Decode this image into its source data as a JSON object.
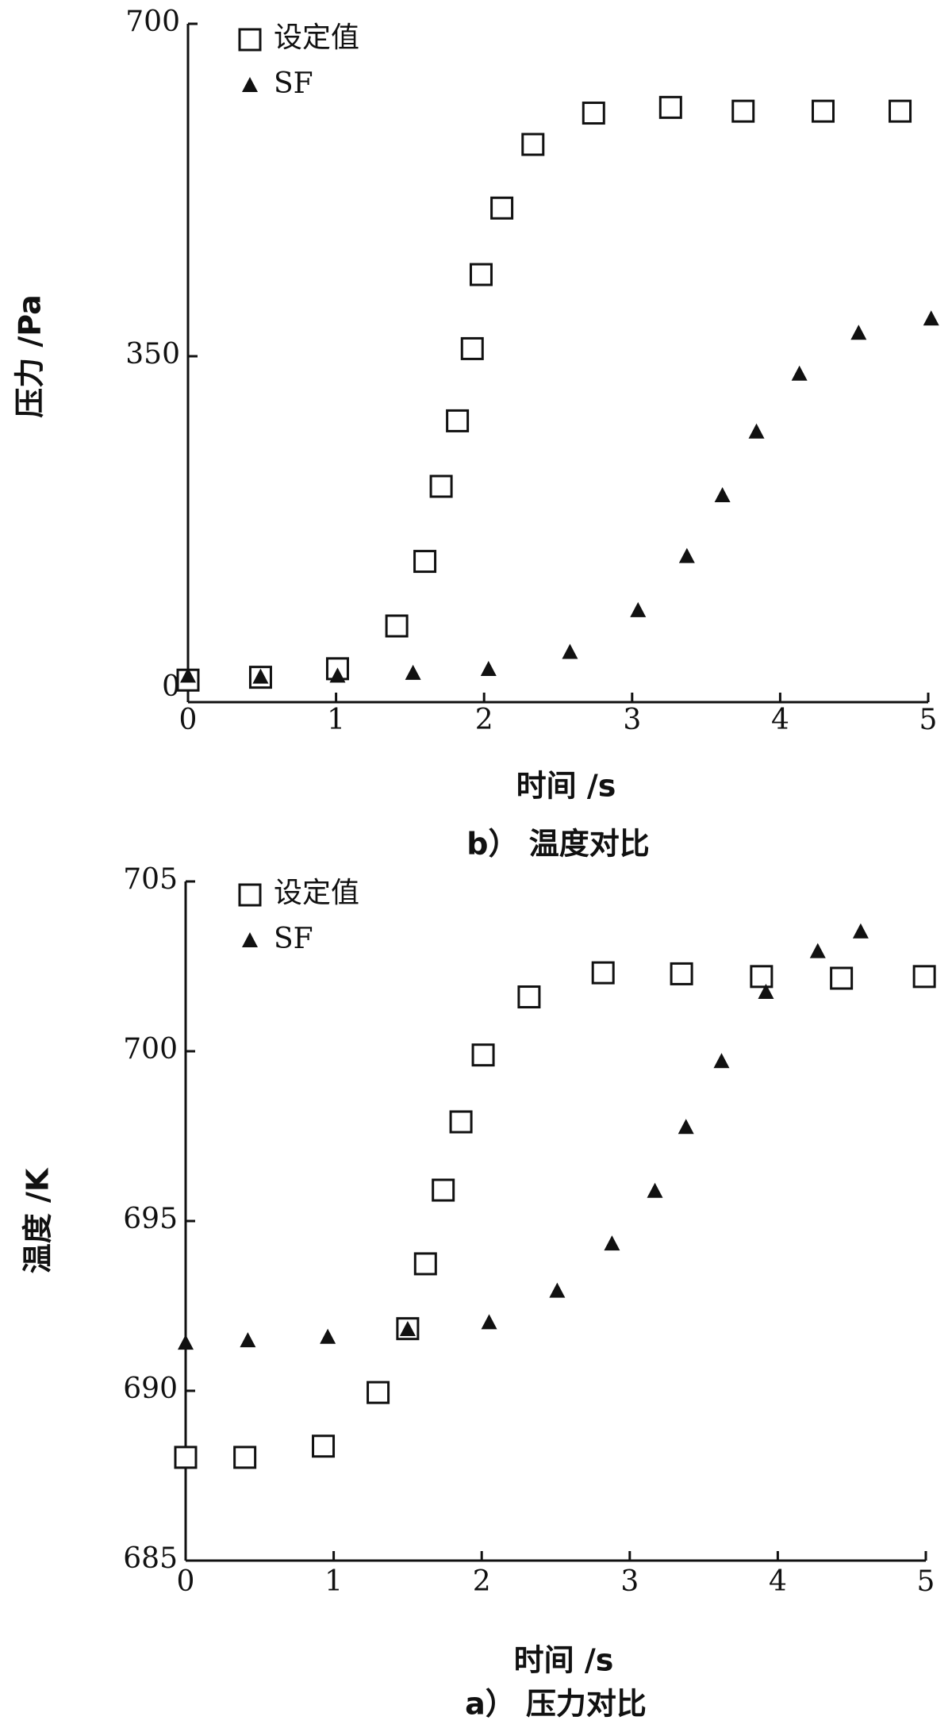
{
  "chart_data": [
    {
      "type": "scatter",
      "caption": "b） 温度对比",
      "xlabel": "时间 /s",
      "ylabel": "压力 /Pa",
      "xlim": [
        0,
        5
      ],
      "xticks": [
        0,
        1,
        2,
        3,
        4,
        5
      ],
      "ylim": [
        0,
        700
      ],
      "yticks": [
        0,
        350,
        700
      ],
      "series": [
        {
          "name": "设定值",
          "marker": "square",
          "color": "#111111",
          "x": [
            0,
            0.49,
            1.01,
            1.41,
            1.6,
            1.71,
            1.82,
            1.92,
            1.98,
            2.12,
            2.33,
            2.74,
            3.26,
            3.75,
            4.29,
            4.81
          ],
          "values": [
            9,
            12,
            21,
            66,
            134,
            213,
            282,
            358,
            436,
            506,
            573,
            606,
            612,
            608,
            608,
            608
          ]
        },
        {
          "name": "SF",
          "marker": "triangle",
          "color": "#111111",
          "x": [
            0,
            0.49,
            1.01,
            1.52,
            2.03,
            2.58,
            3.04,
            3.37,
            3.61,
            3.84,
            4.13,
            4.53,
            5.02
          ],
          "values": [
            13,
            12,
            13,
            16,
            20,
            38,
            82,
            139,
            203,
            270,
            331,
            374,
            389
          ]
        }
      ]
    },
    {
      "type": "scatter",
      "caption": "a） 压力对比",
      "xlabel": "时间 /s",
      "ylabel": "温度 /K",
      "xlim": [
        0,
        5
      ],
      "xticks": [
        0,
        1,
        2,
        3,
        4,
        5
      ],
      "ylim": [
        685,
        705
      ],
      "yticks": [
        685,
        690,
        695,
        700,
        705
      ],
      "series": [
        {
          "name": "设定值",
          "marker": "square",
          "color": "#111111",
          "x": [
            0,
            0.4,
            0.93,
            1.3,
            1.5,
            1.62,
            1.74,
            1.86,
            2.01,
            2.32,
            2.82,
            3.35,
            3.89,
            4.43,
            4.99
          ],
          "values": [
            688.04,
            688.04,
            688.37,
            689.95,
            691.83,
            693.74,
            695.91,
            697.92,
            699.89,
            701.6,
            702.31,
            702.28,
            702.2,
            702.15,
            702.2
          ]
        },
        {
          "name": "SF",
          "marker": "triangle",
          "color": "#111111",
          "x": [
            0,
            0.42,
            0.96,
            1.5,
            2.05,
            2.51,
            2.88,
            3.17,
            3.38,
            3.62,
            3.92,
            4.27,
            4.56
          ],
          "values": [
            691.4,
            691.47,
            691.57,
            691.8,
            692.0,
            692.93,
            694.32,
            695.87,
            697.75,
            699.69,
            701.73,
            702.93,
            703.51
          ]
        }
      ]
    }
  ]
}
